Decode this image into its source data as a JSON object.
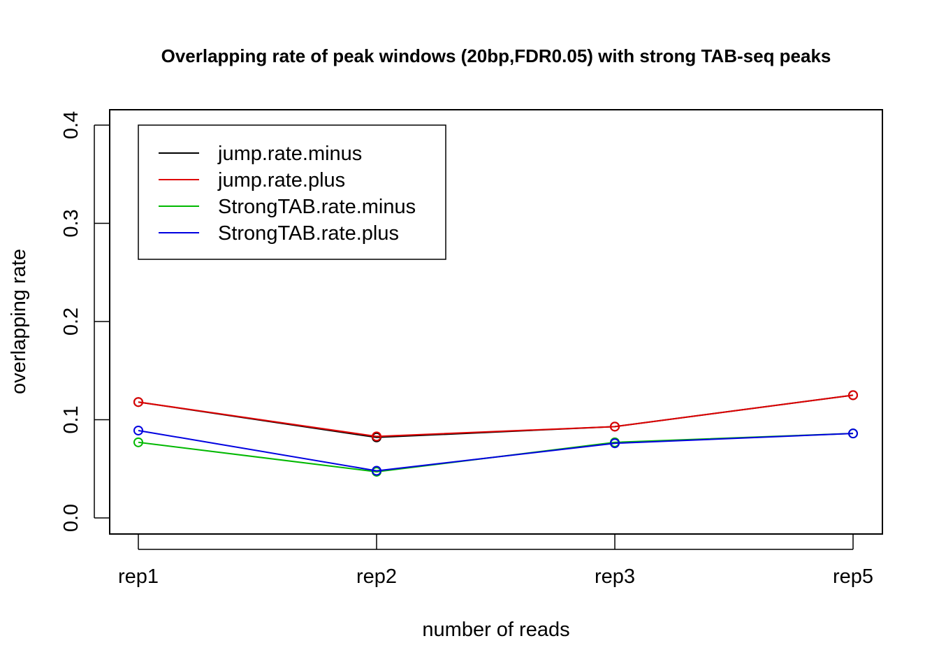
{
  "chart_data": {
    "type": "line",
    "title": "Overlapping rate of peak windows (20bp,FDR0.05) with strong TAB-seq peaks",
    "xlabel": "number of reads",
    "ylabel": "overlapping rate",
    "categories": [
      "rep1",
      "rep2",
      "rep3",
      "rep5"
    ],
    "ylim": [
      0.0,
      0.4
    ],
    "yticks": [
      "0.0",
      "0.1",
      "0.2",
      "0.3",
      "0.4"
    ],
    "grid": false,
    "legend_position": "top-left",
    "series": [
      {
        "name": "jump.rate.minus",
        "color": "#000000",
        "values": [
          0.118,
          0.082,
          0.093,
          0.125
        ]
      },
      {
        "name": "jump.rate.plus",
        "color": "#DF0000",
        "values": [
          0.118,
          0.083,
          0.093,
          0.125
        ]
      },
      {
        "name": "StrongTAB.rate.minus",
        "color": "#00B800",
        "values": [
          0.077,
          0.047,
          0.077,
          0.086
        ]
      },
      {
        "name": "StrongTAB.rate.plus",
        "color": "#0000E0",
        "values": [
          0.089,
          0.048,
          0.076,
          0.086
        ]
      }
    ]
  }
}
